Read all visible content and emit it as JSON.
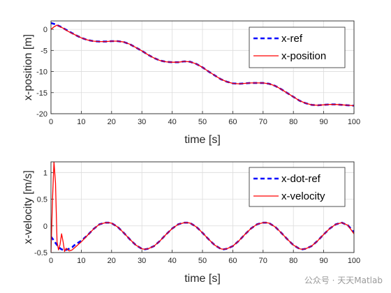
{
  "watermark": "公众号 · 天天Matlab",
  "chart_data": [
    {
      "type": "line",
      "title": "",
      "xlabel": "time [s]",
      "ylabel": "x-position [m]",
      "xlim": [
        0,
        100
      ],
      "ylim": [
        -20,
        2
      ],
      "xticks": [
        "0",
        "10",
        "20",
        "30",
        "40",
        "50",
        "60",
        "70",
        "80",
        "90",
        "100"
      ],
      "yticks": [
        "0",
        "-5",
        "-10",
        "-15",
        "-20"
      ],
      "grid": true,
      "legend_position": "top-right",
      "x": [
        0,
        1,
        2,
        3,
        4,
        5,
        6,
        8,
        10,
        12,
        14,
        16,
        18,
        20,
        22,
        24,
        26,
        28,
        30,
        32,
        34,
        36,
        38,
        40,
        42,
        44,
        46,
        48,
        50,
        52,
        54,
        56,
        58,
        60,
        62,
        64,
        66,
        68,
        70,
        72,
        74,
        76,
        78,
        80,
        82,
        84,
        86,
        88,
        90,
        92,
        94,
        96,
        98,
        100
      ],
      "series": [
        {
          "name": "x-ref",
          "color": "#0000ff",
          "style": "dashed",
          "values": [
            1.5,
            1.3,
            1.0,
            0.7,
            0.3,
            -0.1,
            -0.5,
            -1.3,
            -2.0,
            -2.5,
            -2.8,
            -2.9,
            -2.9,
            -2.8,
            -2.8,
            -3.0,
            -3.5,
            -4.3,
            -5.1,
            -6.0,
            -6.8,
            -7.4,
            -7.7,
            -7.8,
            -7.8,
            -7.6,
            -7.7,
            -8.2,
            -9.0,
            -10.0,
            -10.9,
            -11.8,
            -12.4,
            -12.8,
            -12.9,
            -12.8,
            -12.7,
            -12.7,
            -12.7,
            -12.9,
            -13.4,
            -14.2,
            -15.1,
            -16.0,
            -16.9,
            -17.5,
            -17.9,
            -18.0,
            -17.9,
            -17.8,
            -17.8,
            -17.9,
            -18.0,
            -18.1
          ]
        },
        {
          "name": "x-position",
          "color": "#ff0000",
          "style": "solid",
          "values": [
            0.0,
            0.6,
            1.0,
            0.6,
            0.3,
            -0.2,
            -0.6,
            -1.3,
            -2.0,
            -2.5,
            -2.8,
            -2.9,
            -2.9,
            -2.8,
            -2.8,
            -3.0,
            -3.5,
            -4.3,
            -5.1,
            -6.0,
            -6.8,
            -7.4,
            -7.7,
            -7.8,
            -7.8,
            -7.6,
            -7.7,
            -8.2,
            -9.0,
            -10.0,
            -10.9,
            -11.8,
            -12.4,
            -12.8,
            -12.9,
            -12.8,
            -12.7,
            -12.7,
            -12.7,
            -12.9,
            -13.4,
            -14.2,
            -15.1,
            -16.0,
            -16.9,
            -17.5,
            -17.9,
            -18.0,
            -17.9,
            -17.8,
            -17.8,
            -17.9,
            -18.0,
            -18.1
          ]
        }
      ]
    },
    {
      "type": "line",
      "title": "",
      "xlabel": "time [s]",
      "ylabel": "x-velocity [m/s]",
      "xlim": [
        0,
        100
      ],
      "ylim": [
        -0.5,
        1.2
      ],
      "xticks": [
        "0",
        "10",
        "20",
        "30",
        "40",
        "50",
        "60",
        "70",
        "80",
        "90",
        "100"
      ],
      "yticks": [
        "0",
        "0.5",
        "1",
        "-0.5"
      ],
      "grid": true,
      "legend_position": "top-right",
      "x": [
        0,
        0.5,
        1,
        1.5,
        2,
        2.5,
        3,
        3.5,
        4,
        4.5,
        5,
        6,
        7,
        8,
        10,
        12,
        14,
        16,
        18,
        19,
        20,
        22,
        24,
        26,
        28,
        30,
        31,
        32,
        34,
        36,
        38,
        40,
        42,
        44,
        45,
        46,
        48,
        50,
        52,
        54,
        56,
        57,
        58,
        60,
        62,
        64,
        66,
        68,
        70,
        71,
        72,
        74,
        76,
        78,
        80,
        82,
        83,
        84,
        86,
        88,
        90,
        92,
        94,
        96,
        98,
        100
      ],
      "series": [
        {
          "name": "x-dot-ref",
          "color": "#0000ff",
          "style": "dashed",
          "values": [
            -0.2,
            -0.24,
            -0.28,
            -0.32,
            -0.36,
            -0.39,
            -0.42,
            -0.44,
            -0.45,
            -0.46,
            -0.45,
            -0.43,
            -0.4,
            -0.35,
            -0.28,
            -0.18,
            -0.06,
            0.03,
            0.06,
            0.06,
            0.05,
            -0.02,
            -0.13,
            -0.25,
            -0.36,
            -0.43,
            -0.44,
            -0.43,
            -0.38,
            -0.28,
            -0.16,
            -0.05,
            0.03,
            0.06,
            0.06,
            0.05,
            -0.02,
            -0.13,
            -0.25,
            -0.36,
            -0.43,
            -0.44,
            -0.43,
            -0.38,
            -0.28,
            -0.16,
            -0.05,
            0.03,
            0.06,
            0.06,
            0.05,
            -0.02,
            -0.13,
            -0.25,
            -0.36,
            -0.43,
            -0.44,
            -0.43,
            -0.38,
            -0.28,
            -0.16,
            -0.05,
            0.03,
            0.06,
            0.01,
            -0.12
          ]
        },
        {
          "name": "x-velocity",
          "color": "#ff0000",
          "style": "solid",
          "values": [
            -0.5,
            0.5,
            1.2,
            0.8,
            -0.3,
            -0.45,
            -0.35,
            -0.15,
            -0.3,
            -0.48,
            -0.42,
            -0.47,
            -0.45,
            -0.4,
            -0.3,
            -0.18,
            -0.06,
            0.03,
            0.06,
            0.06,
            0.05,
            -0.02,
            -0.13,
            -0.25,
            -0.36,
            -0.43,
            -0.44,
            -0.43,
            -0.38,
            -0.28,
            -0.16,
            -0.05,
            0.03,
            0.06,
            0.06,
            0.05,
            -0.02,
            -0.13,
            -0.25,
            -0.36,
            -0.43,
            -0.44,
            -0.43,
            -0.38,
            -0.28,
            -0.16,
            -0.05,
            0.03,
            0.06,
            0.06,
            0.05,
            -0.02,
            -0.13,
            -0.25,
            -0.36,
            -0.43,
            -0.44,
            -0.43,
            -0.38,
            -0.28,
            -0.16,
            -0.05,
            0.03,
            0.06,
            0.01,
            -0.15
          ]
        }
      ]
    }
  ]
}
